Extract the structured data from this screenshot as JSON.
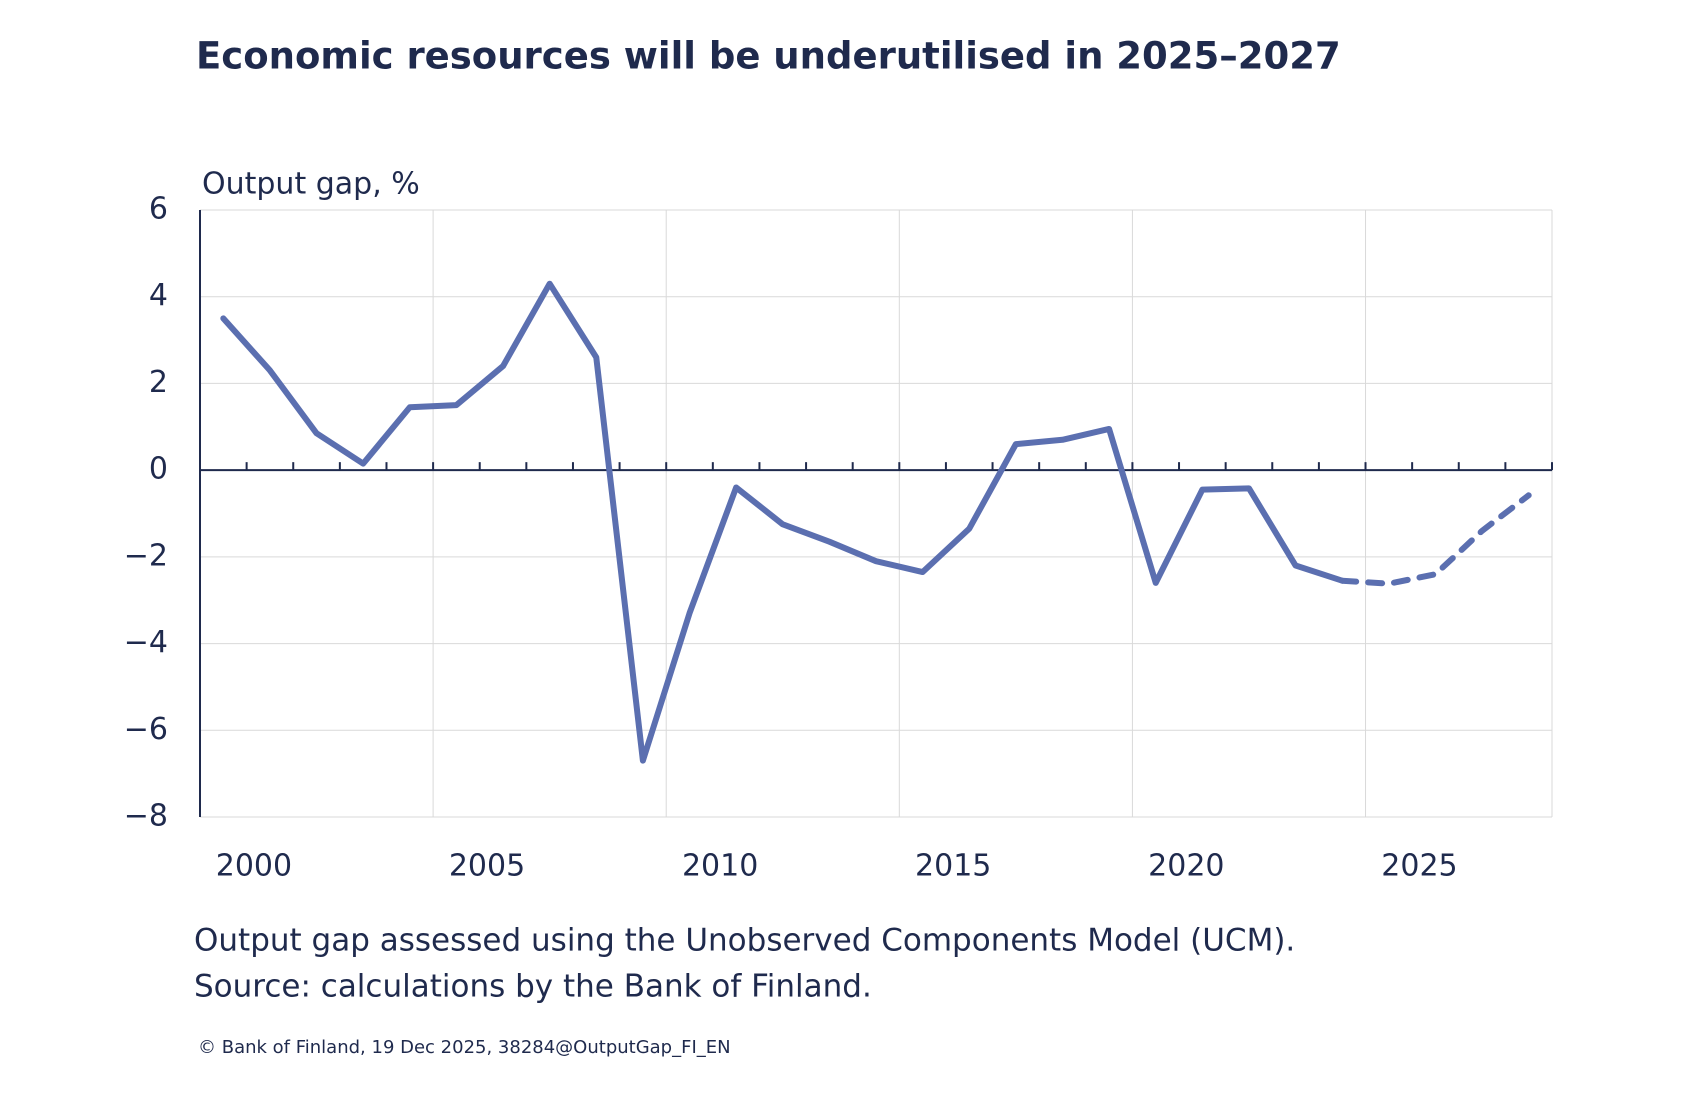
{
  "chart_data": {
    "type": "line",
    "title": "Economic resources will be underutilised in 2025–2027",
    "y_label": "Output gap, %",
    "notes": [
      "Output gap assessed using the Unobserved Components Model (UCM).",
      "Source: calculations by the Bank of Finland."
    ],
    "copyright": "© Bank of Finland, 19 Dec 2025, 38284@OutputGap_FI_EN",
    "categories": [
      null,
      "2000",
      null,
      null,
      null,
      null,
      "2005",
      null,
      null,
      null,
      null,
      "2010",
      null,
      null,
      null,
      null,
      "2015",
      null,
      null,
      null,
      null,
      "2020",
      null,
      null,
      null,
      null,
      "2025",
      null,
      null
    ],
    "series": [
      {
        "color": "#5b6fb0",
        "dashed": false,
        "values": [
          3.5,
          2.3,
          0.85,
          0.15,
          1.45,
          1.5,
          2.4,
          4.3,
          2.6,
          -6.7,
          -3.3,
          -0.4,
          -1.25,
          -1.65,
          -2.1,
          -2.35,
          -1.35,
          0.6,
          0.7,
          0.95,
          -2.6,
          -0.45,
          -0.42,
          -2.2,
          -2.55,
          null,
          null,
          null,
          null
        ]
      },
      {
        "color": "#5b6fb0",
        "dashed": true,
        "values": [
          null,
          null,
          null,
          null,
          null,
          null,
          null,
          null,
          null,
          null,
          null,
          null,
          null,
          null,
          null,
          null,
          null,
          null,
          null,
          null,
          null,
          null,
          null,
          null,
          -2.55,
          -2.62,
          -2.4,
          -1.4,
          -0.58
        ]
      }
    ],
    "ylim": [
      -8,
      6
    ],
    "yticks": [
      {
        "value": -8,
        "label": "−8"
      },
      {
        "value": -6,
        "label": "−6"
      },
      {
        "value": -4,
        "label": "−4"
      },
      {
        "value": -2,
        "label": "−2"
      },
      0,
      2,
      4,
      6
    ],
    "grid": true
  }
}
